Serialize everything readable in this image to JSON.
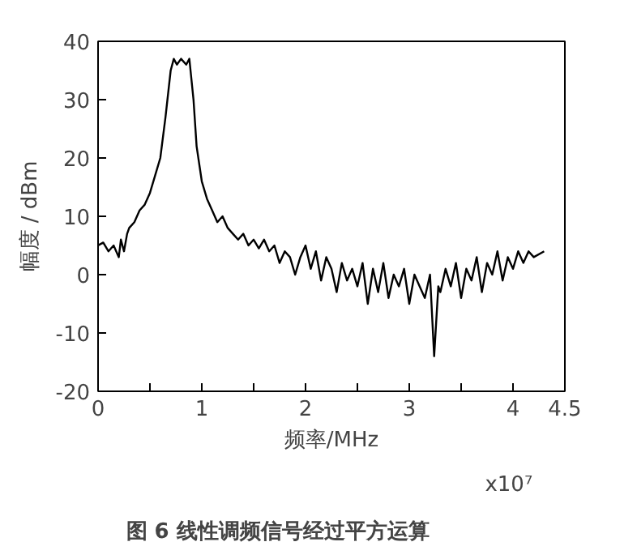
{
  "chart_data": {
    "type": "line",
    "xlabel": "频率/MHz",
    "ylabel": "幅度 / dBm",
    "annotations": [
      "x10⁷",
      "图 6   线性调频信号经过平方运算"
    ],
    "x": [
      0,
      0.05,
      0.1,
      0.15,
      0.2,
      0.22,
      0.25,
      0.28,
      0.3,
      0.35,
      0.4,
      0.45,
      0.5,
      0.55,
      0.6,
      0.65,
      0.7,
      0.73,
      0.76,
      0.8,
      0.85,
      0.88,
      0.92,
      0.95,
      1.0,
      1.05,
      1.1,
      1.15,
      1.2,
      1.25,
      1.3,
      1.35,
      1.4,
      1.45,
      1.5,
      1.55,
      1.6,
      1.65,
      1.7,
      1.75,
      1.8,
      1.85,
      1.9,
      1.95,
      2.0,
      2.05,
      2.1,
      2.15,
      2.2,
      2.25,
      2.3,
      2.35,
      2.4,
      2.45,
      2.5,
      2.55,
      2.6,
      2.65,
      2.7,
      2.75,
      2.8,
      2.85,
      2.9,
      2.95,
      3.0,
      3.05,
      3.1,
      3.15,
      3.2,
      3.24,
      3.28,
      3.3,
      3.35,
      3.4,
      3.45,
      3.5,
      3.55,
      3.6,
      3.65,
      3.7,
      3.75,
      3.8,
      3.85,
      3.9,
      3.95,
      4.0,
      4.05,
      4.1,
      4.15,
      4.2,
      4.3
    ],
    "series": [
      {
        "color": "#000000",
        "values": [
          5,
          5.5,
          4,
          5,
          3,
          6,
          4,
          7,
          8,
          9,
          11,
          12,
          14,
          17,
          20,
          27,
          35,
          37,
          36,
          37,
          36,
          37,
          30,
          22,
          16,
          13,
          11,
          9,
          10,
          8,
          7,
          6,
          7,
          5,
          6,
          4.5,
          6,
          4,
          5,
          2,
          4,
          3,
          0,
          3,
          5,
          1,
          4,
          -1,
          3,
          1,
          -3,
          2,
          -1,
          1,
          -2,
          2,
          -5,
          1,
          -3,
          2,
          -4,
          0,
          -2,
          1,
          -5,
          0,
          -2,
          -4,
          0,
          -14,
          -2,
          -3,
          1,
          -2,
          2,
          -4,
          1,
          -1,
          3,
          -3,
          2,
          0,
          4,
          -1,
          3,
          1,
          4,
          2,
          4,
          3,
          4
        ]
      }
    ],
    "xlim": [
      0,
      4.5
    ],
    "ylim": [
      -20,
      40
    ],
    "xticks": [
      0,
      {
        "value": 0.5,
        "label": null
      },
      1,
      {
        "value": 1.5,
        "label": null
      },
      2,
      {
        "value": 2.5,
        "label": null
      },
      3,
      {
        "value": 3.5,
        "label": null
      },
      4,
      4.5
    ],
    "yticks": [
      -20,
      -10,
      0,
      10,
      20,
      30,
      40
    ],
    "grid": false,
    "line_style": "solid",
    "marker": "none"
  }
}
